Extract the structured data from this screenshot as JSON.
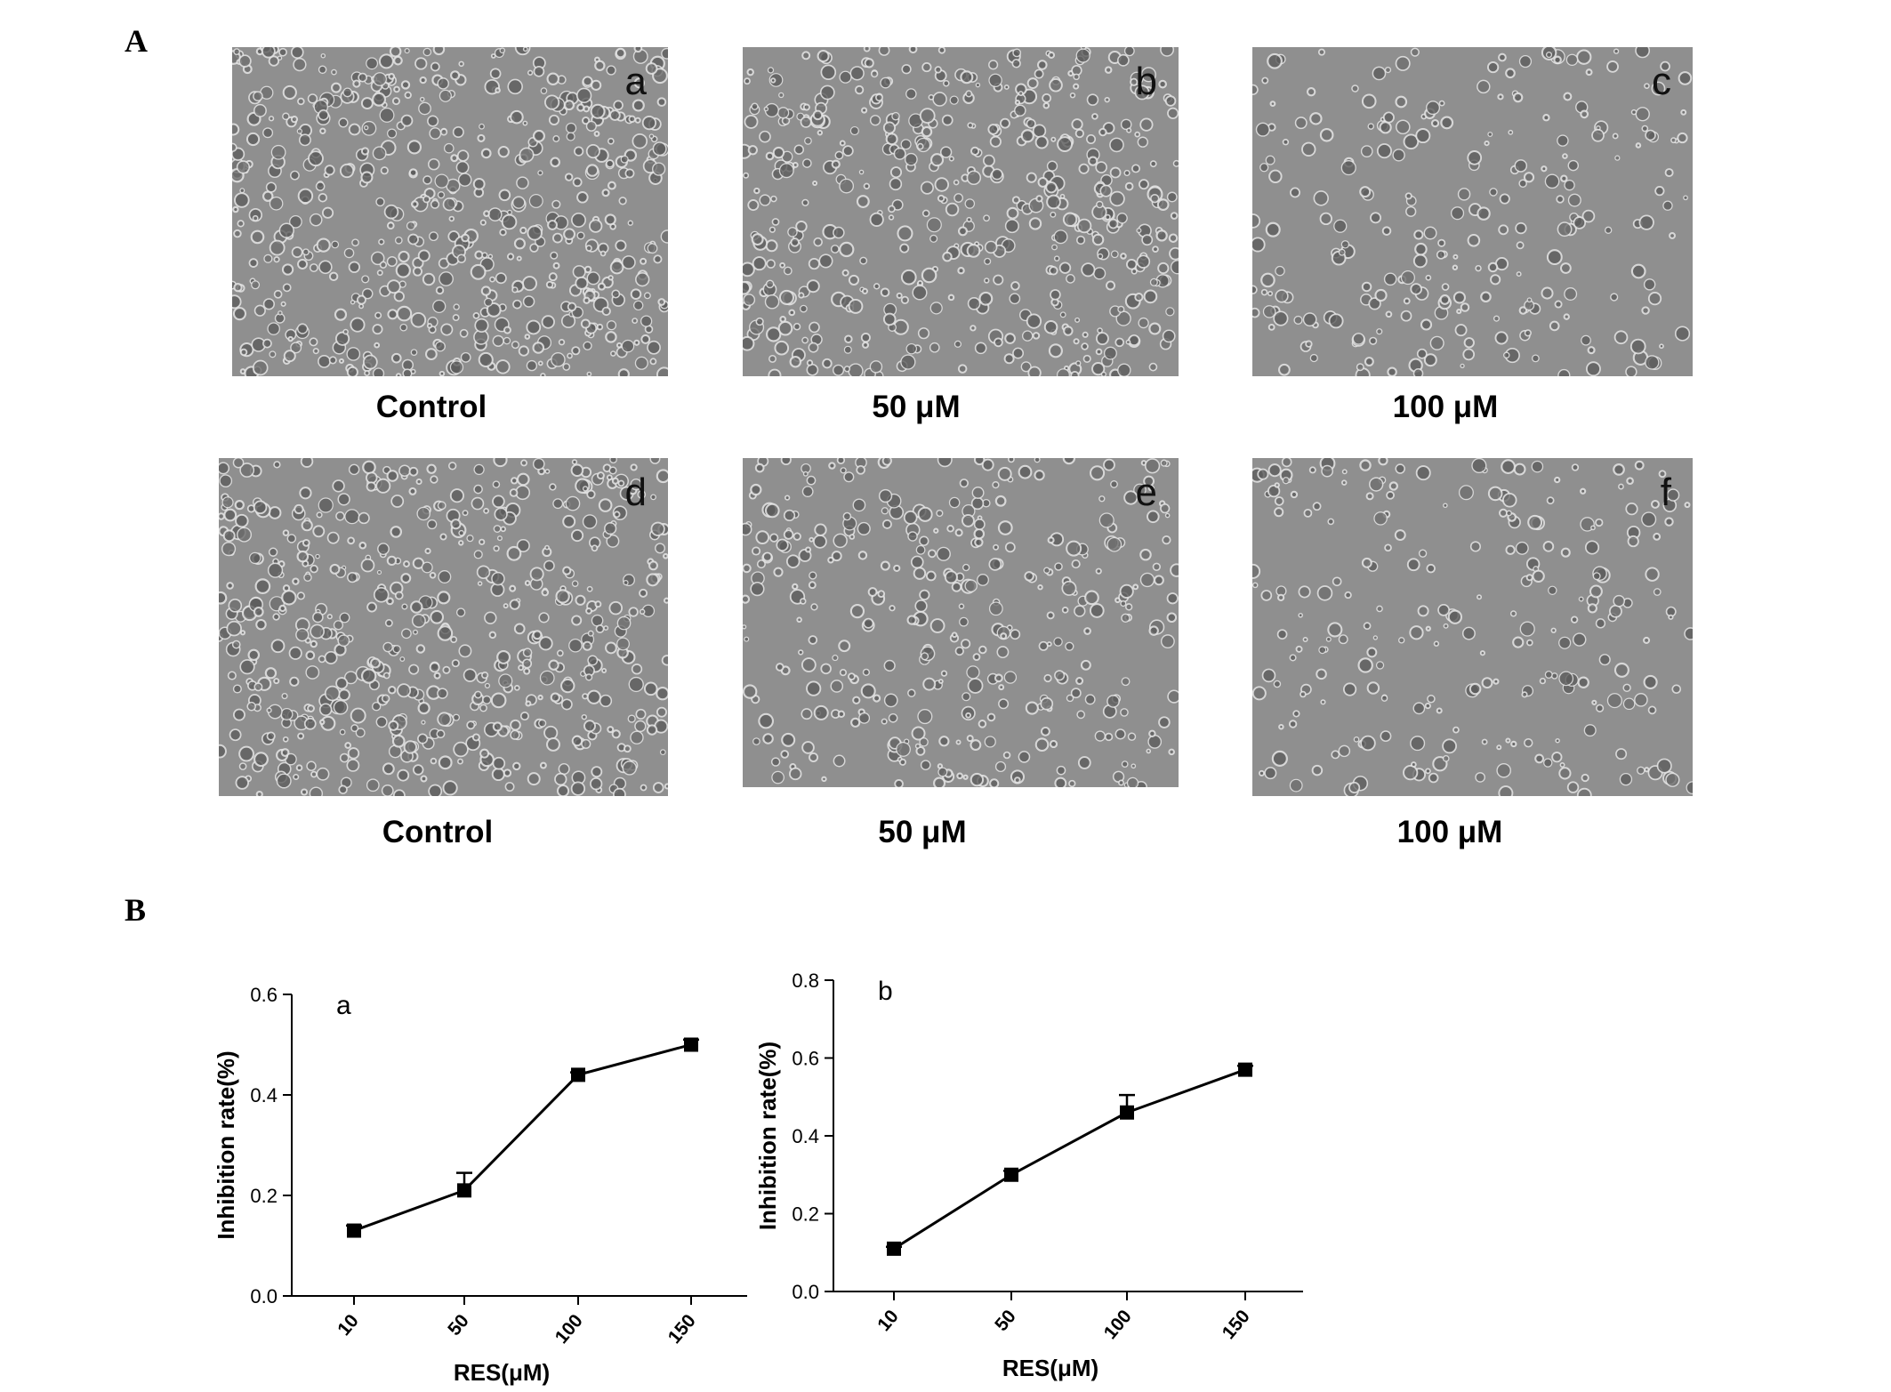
{
  "figure": {
    "panel_A_label": "A",
    "panel_B_label": "B"
  },
  "micrographs": {
    "row1": [
      {
        "letter": "a",
        "caption": "Control"
      },
      {
        "letter": "b",
        "caption": "50 μM"
      },
      {
        "letter": "c",
        "caption": "100 μM"
      }
    ],
    "row2": [
      {
        "letter": "d",
        "caption": "Control"
      },
      {
        "letter": "e",
        "caption": "50 μM"
      },
      {
        "letter": "f",
        "caption": "100 μM"
      }
    ]
  },
  "chart_data": [
    {
      "type": "line",
      "panel": "a",
      "categories": [
        "10",
        "50",
        "100",
        "150"
      ],
      "series": [
        {
          "values": [
            0.13,
            0.21,
            0.44,
            0.5
          ],
          "errors": [
            0.01,
            0.035,
            0.005,
            0.01
          ]
        }
      ],
      "xlabel": "RES(μM)",
      "ylabel": "Inhibition rate(%)",
      "ylim": [
        0,
        0.6
      ],
      "yticks": [
        "0.0",
        "0.2",
        "0.4",
        "0.6"
      ],
      "grid": false
    },
    {
      "type": "line",
      "panel": "b",
      "categories": [
        "10",
        "50",
        "100",
        "150"
      ],
      "series": [
        {
          "values": [
            0.11,
            0.3,
            0.46,
            0.57
          ],
          "errors": [
            0.005,
            0.01,
            0.045,
            0.01
          ]
        }
      ],
      "xlabel": "RES(μM)",
      "ylabel": "Inhibition rate(%)",
      "ylim": [
        0,
        0.8
      ],
      "yticks": [
        "0.0",
        "0.2",
        "0.4",
        "0.6",
        "0.8"
      ],
      "grid": false
    }
  ]
}
